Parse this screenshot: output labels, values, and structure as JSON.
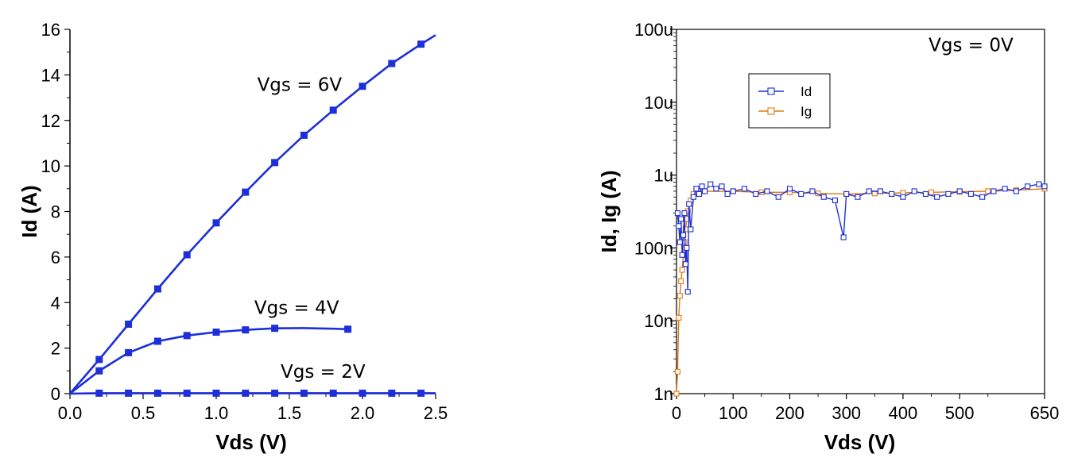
{
  "colors": {
    "id_series": "#1f2fd6",
    "ig_series": "#e07a12",
    "left_series": "#1c2fd8",
    "axis": "#000000"
  },
  "chart_data": [
    {
      "type": "line",
      "xlabel": "Vds (V)",
      "ylabel": "Id (A)",
      "xlim": [
        0,
        2.5
      ],
      "ylim": [
        0,
        16
      ],
      "xticks": [
        0,
        0.5,
        1.0,
        1.5,
        2.0,
        2.5
      ],
      "xtick_labels": [
        "0.0",
        "0.5",
        "1.0",
        "1.5",
        "2.0",
        "2.5"
      ],
      "yticks": [
        0,
        2,
        4,
        6,
        8,
        10,
        12,
        14,
        16
      ],
      "ytick_labels": [
        "0",
        "2",
        "4",
        "6",
        "8",
        "10",
        "12",
        "14",
        "16"
      ],
      "grid": false,
      "series": [
        {
          "label": "Vgs = 6V",
          "marker": "square",
          "x": [
            0,
            0.2,
            0.4,
            0.6,
            0.8,
            1.0,
            1.2,
            1.4,
            1.6,
            1.8,
            2.0,
            2.2,
            2.4,
            2.5
          ],
          "y": [
            0,
            1.5,
            3.05,
            4.6,
            6.1,
            7.5,
            8.85,
            10.15,
            11.35,
            12.45,
            13.5,
            14.5,
            15.35,
            15.75
          ],
          "marker_x": [
            0.2,
            0.4,
            0.6,
            0.8,
            1.0,
            1.2,
            1.4,
            1.6,
            1.8,
            2.0,
            2.2,
            2.4
          ],
          "marker_y": [
            1.5,
            3.05,
            4.6,
            6.1,
            7.5,
            8.85,
            10.15,
            11.35,
            12.45,
            13.5,
            14.5,
            15.35
          ]
        },
        {
          "label": "Vgs = 4V",
          "marker": "square",
          "x": [
            0,
            0.2,
            0.4,
            0.6,
            0.8,
            1.0,
            1.2,
            1.4,
            1.6,
            1.8,
            1.9
          ],
          "y": [
            0,
            1.0,
            1.8,
            2.3,
            2.55,
            2.7,
            2.8,
            2.87,
            2.88,
            2.85,
            2.83
          ],
          "marker_x": [
            0.2,
            0.4,
            0.6,
            0.8,
            1.0,
            1.2,
            1.4,
            1.9
          ],
          "marker_y": [
            1.0,
            1.8,
            2.3,
            2.55,
            2.7,
            2.8,
            2.87,
            2.83
          ]
        },
        {
          "label": "Vgs = 2V",
          "marker": "square",
          "x": [
            0,
            0.2,
            0.4,
            0.6,
            0.8,
            1.0,
            1.2,
            1.4,
            1.6,
            1.8,
            2.0,
            2.2,
            2.4,
            2.5
          ],
          "y": [
            0,
            0.02,
            0.02,
            0.02,
            0.02,
            0.02,
            0.02,
            0.02,
            0.02,
            0.02,
            0.02,
            0.02,
            0.02,
            0.02
          ],
          "marker_x": [
            0.2,
            0.4,
            0.6,
            0.8,
            1.0,
            1.2,
            1.4,
            1.6,
            1.8,
            2.0,
            2.2,
            2.4
          ],
          "marker_y": [
            0.02,
            0.02,
            0.02,
            0.02,
            0.02,
            0.02,
            0.02,
            0.02,
            0.02,
            0.02,
            0.02,
            0.02
          ]
        }
      ],
      "annotations": [
        {
          "text": "Vgs = 6V",
          "x": 1.57,
          "y": 13.3
        },
        {
          "text": "Vgs = 4V",
          "x": 1.55,
          "y": 3.5
        },
        {
          "text": "Vgs = 2V",
          "x": 1.73,
          "y": 0.7
        }
      ]
    },
    {
      "type": "line",
      "xlabel": "Vds (V)",
      "ylabel": "Id, Ig (A)",
      "xlim": [
        0,
        650
      ],
      "yscale": "log",
      "ylim": [
        1e-09,
        0.0001
      ],
      "xticks": [
        0,
        100,
        200,
        300,
        400,
        500,
        650
      ],
      "xtick_labels": [
        "0",
        "100",
        "200",
        "300",
        "400",
        "500",
        "650"
      ],
      "yticks": [
        1e-09,
        1e-08,
        1e-07,
        1e-06,
        1e-05,
        0.0001
      ],
      "ytick_labels": [
        "1n",
        "10n",
        "100n",
        "1u",
        "10u",
        "100u"
      ],
      "grid": false,
      "legend": {
        "position": "top-left",
        "entries": [
          "Id",
          "Ig"
        ]
      },
      "annotations": [
        {
          "text": "Vgs = 0V",
          "x": 520,
          "y": 5e-05
        }
      ],
      "series": [
        {
          "name": "Id",
          "marker": "open-square",
          "x": [
            2,
            4,
            6,
            8,
            10,
            12,
            14,
            16,
            18,
            20,
            22,
            25,
            30,
            35,
            40,
            45,
            50,
            60,
            70,
            80,
            90,
            100,
            120,
            140,
            160,
            180,
            200,
            220,
            240,
            260,
            280,
            295,
            300,
            320,
            340,
            360,
            380,
            400,
            420,
            440,
            460,
            480,
            500,
            520,
            540,
            560,
            580,
            600,
            620,
            640,
            650
          ],
          "y": [
            3e-07,
            2e-07,
            1.2e-07,
            2.5e-07,
            8e-08,
            1.5e-07,
            3e-07,
            6e-08,
            1e-07,
            2.5e-08,
            4e-07,
            1.8e-07,
            5e-07,
            6.5e-07,
            5.5e-07,
            7e-07,
            6e-07,
            7.5e-07,
            6.5e-07,
            7e-07,
            5.5e-07,
            6e-07,
            6.5e-07,
            5.5e-07,
            6e-07,
            5e-07,
            6.5e-07,
            5.5e-07,
            6e-07,
            5e-07,
            4.5e-07,
            1.4e-07,
            5.5e-07,
            5e-07,
            6e-07,
            6e-07,
            5.5e-07,
            5e-07,
            6e-07,
            5.5e-07,
            5e-07,
            5.5e-07,
            6e-07,
            5.5e-07,
            5e-07,
            6e-07,
            6.5e-07,
            6e-07,
            7e-07,
            7.5e-07,
            7e-07
          ]
        },
        {
          "name": "Ig",
          "marker": "open-square",
          "x": [
            0,
            2,
            4,
            6,
            8,
            10,
            12,
            14,
            16,
            18,
            20,
            25,
            30,
            40,
            50,
            100,
            150,
            200,
            250,
            300,
            350,
            400,
            450,
            500,
            550,
            600,
            650
          ],
          "y": [
            1e-09,
            2e-09,
            1.1e-08,
            2.2e-08,
            3.5e-08,
            5e-08,
            8e-08,
            1.2e-07,
            1.8e-07,
            2.5e-07,
            3.2e-07,
            4.5e-07,
            5.5e-07,
            6e-07,
            6e-07,
            6e-07,
            5.8e-07,
            5.8e-07,
            5.6e-07,
            5.5e-07,
            5.6e-07,
            5.7e-07,
            5.8e-07,
            5.9e-07,
            6e-07,
            6.2e-07,
            6.5e-07
          ]
        }
      ]
    }
  ]
}
